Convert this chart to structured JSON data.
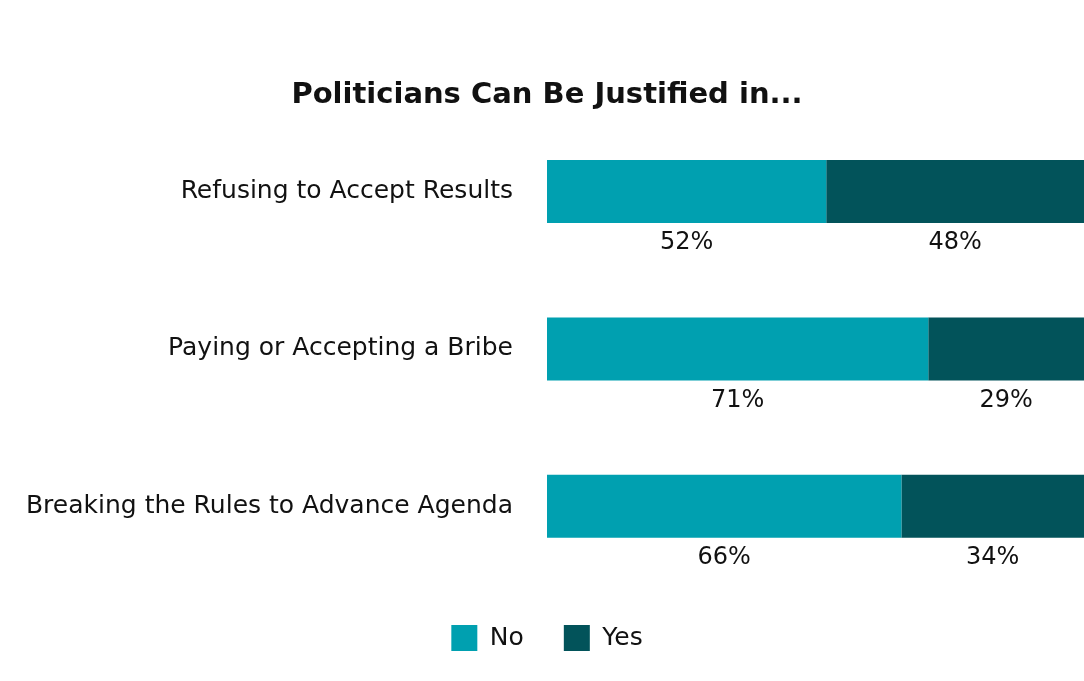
{
  "chart_data": {
    "type": "bar",
    "orientation": "horizontal",
    "stacked": true,
    "title": "Politicians Can Be Justified in...",
    "categories": [
      "Refusing to Accept Results",
      "Paying or Accepting a Bribe",
      "Breaking the Rules to Advance Agenda"
    ],
    "series": [
      {
        "name": "No",
        "color": "#00a0b0",
        "values": [
          52,
          71,
          66
        ],
        "value_labels": [
          "52%",
          "71%",
          "66%"
        ]
      },
      {
        "name": "Yes",
        "color": "#02535a",
        "values": [
          48,
          29,
          34
        ],
        "value_labels": [
          "48%",
          "29%",
          "34%"
        ]
      }
    ],
    "xlim": [
      0,
      100
    ],
    "tick_labels": "y",
    "legend": "bottom"
  }
}
